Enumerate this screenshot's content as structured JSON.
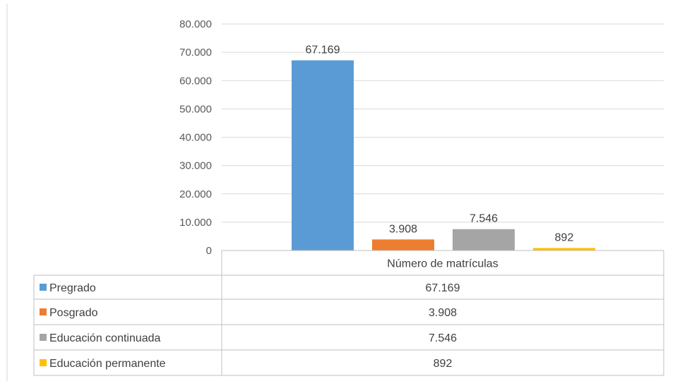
{
  "chart_data": {
    "type": "bar",
    "categories": [
      "Número de matrículas"
    ],
    "series": [
      {
        "name": "Pregrado",
        "values": [
          67169
        ],
        "label": "67.169",
        "color": "#5B9BD5"
      },
      {
        "name": "Posgrado",
        "values": [
          3908
        ],
        "label": "3.908",
        "color": "#ED7D31"
      },
      {
        "name": "Educación continuada",
        "values": [
          7546
        ],
        "label": "7.546",
        "color": "#A5A5A5"
      },
      {
        "name": "Educación permanente",
        "values": [
          892
        ],
        "label": "892",
        "color": "#FFC000"
      }
    ],
    "ylim": [
      0,
      80000
    ],
    "yticks": [
      0,
      10000,
      20000,
      30000,
      40000,
      50000,
      60000,
      70000,
      80000
    ],
    "ytick_labels": [
      "0",
      "10.000",
      "20.000",
      "30.000",
      "40.000",
      "50.000",
      "60.000",
      "70.000",
      "80.000"
    ],
    "grid": true,
    "legend": "data-table-below"
  }
}
